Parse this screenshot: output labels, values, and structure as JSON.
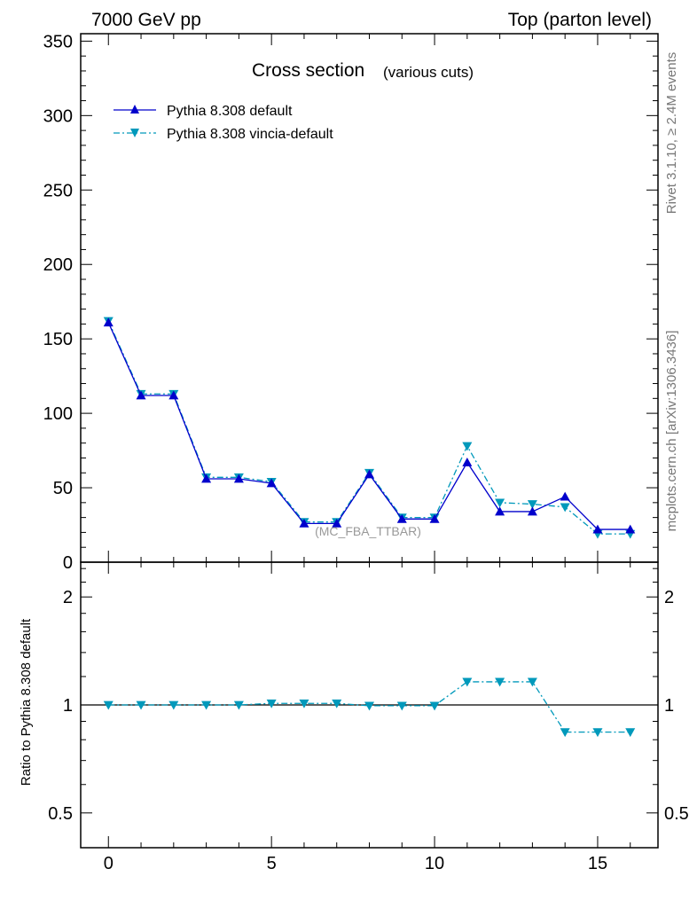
{
  "header": {
    "left": "7000 GeV pp",
    "right": "Top (parton level)"
  },
  "side_text": {
    "rivet": "Rivet 3.1.10, ≥ 2.4M events",
    "mcplots": "mcplots.cern.ch [arXiv:1306.3436]"
  },
  "chart_data": [
    {
      "type": "line",
      "title": "Cross section",
      "subtitle": "(various cuts)",
      "watermark": "(MC_FBA_TTBAR)",
      "xlabel": "",
      "ylabel": "",
      "xlim": [
        -0.85,
        16.85
      ],
      "ylim": [
        0,
        355
      ],
      "yticks": [
        0,
        50,
        100,
        150,
        200,
        250,
        300,
        350
      ],
      "xticks": [
        0,
        5,
        10,
        15
      ],
      "legend_position": "top-left",
      "x": [
        0,
        1,
        2,
        3,
        4,
        5,
        6,
        7,
        8,
        9,
        10,
        11,
        12,
        13,
        14,
        15,
        16
      ],
      "series": [
        {
          "name": "Pythia 8.308 default",
          "color": "#0000cc",
          "marker": "triangle-up",
          "linestyle": "solid",
          "values": [
            161,
            112,
            112,
            56,
            56,
            53,
            26,
            26,
            59,
            29,
            29,
            67,
            34,
            34,
            44,
            22,
            22
          ]
        },
        {
          "name": "Pythia 8.308 vincia-default",
          "color": "#0099bb",
          "marker": "triangle-down",
          "linestyle": "dashdot",
          "values": [
            162,
            113,
            113,
            57,
            57,
            54,
            27,
            27,
            60,
            30,
            30,
            78,
            40,
            39,
            37,
            19,
            19
          ]
        }
      ]
    },
    {
      "type": "line",
      "ylabel": "Ratio to Pythia 8.308 default",
      "xlim": [
        -0.85,
        16.85
      ],
      "ylim": [
        0.4,
        2.5
      ],
      "yscale": "log",
      "ytick_labels": [
        "0.5",
        "1",
        "2"
      ],
      "yticks": [
        0.5,
        1,
        2
      ],
      "xticks": [
        0,
        5,
        10,
        15
      ],
      "reference_line": 1,
      "x": [
        0,
        1,
        2,
        3,
        4,
        5,
        6,
        7,
        8,
        9,
        10,
        11,
        12,
        13,
        14,
        15,
        16
      ],
      "series": [
        {
          "name": "Pythia 8.308 vincia-default",
          "color": "#0099bb",
          "marker": "triangle-down",
          "linestyle": "dashdot",
          "values": [
            1.0,
            1.0,
            1.0,
            1.0,
            1.0,
            1.01,
            1.01,
            1.01,
            0.995,
            0.995,
            0.995,
            1.16,
            1.16,
            1.16,
            0.84,
            0.84,
            0.84
          ]
        }
      ]
    }
  ]
}
